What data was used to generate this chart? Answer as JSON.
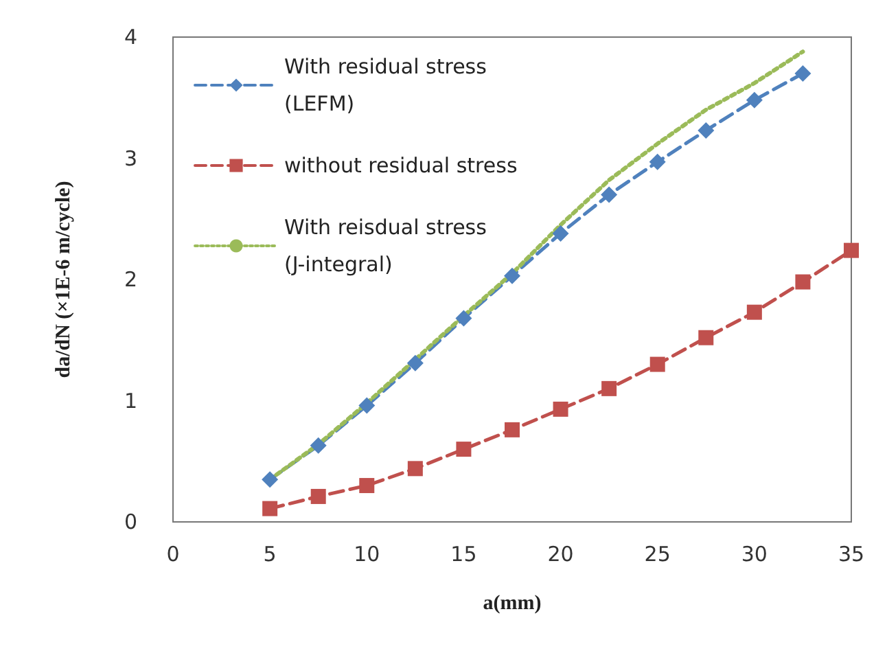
{
  "chart_data": {
    "type": "line",
    "xlabel": "a(mm)",
    "ylabel": "da/dN (×1E-6 m/cycle)",
    "xlim": [
      0,
      35
    ],
    "xticks": [
      0,
      5,
      10,
      15,
      20,
      25,
      30,
      35
    ],
    "ylim": [
      0,
      4
    ],
    "yticks": [
      0,
      1,
      2,
      3,
      4
    ],
    "grid": false,
    "legend": "top left",
    "series": [
      {
        "name": "With residual stress (LEFM)",
        "color": "#4f81bd",
        "marker": "diamond",
        "line_style": "dashed",
        "x": [
          5,
          7.5,
          10,
          12.5,
          15,
          17.5,
          20,
          22.5,
          25,
          27.5,
          30,
          32.5
        ],
        "values": [
          0.35,
          0.63,
          0.96,
          1.31,
          1.68,
          2.03,
          2.38,
          2.7,
          2.97,
          3.23,
          3.48,
          3.7
        ]
      },
      {
        "name": "without residual stress",
        "color": "#c0504d",
        "marker": "square",
        "line_style": "dashed",
        "x": [
          5,
          7.5,
          10,
          12.5,
          15,
          17.5,
          20,
          22.5,
          25,
          27.5,
          30,
          32.5,
          35
        ],
        "values": [
          0.11,
          0.21,
          0.3,
          0.44,
          0.6,
          0.76,
          0.93,
          1.1,
          1.3,
          1.52,
          1.73,
          1.98,
          2.24
        ]
      },
      {
        "name": "With reisdual stress (J-integral)",
        "color": "#9bbb59",
        "marker": "none",
        "line_style": "dotted",
        "x": [
          5,
          7.5,
          10,
          12.5,
          15,
          17.5,
          20,
          22.5,
          25,
          27.5,
          30,
          32.5
        ],
        "values": [
          0.35,
          0.64,
          0.98,
          1.34,
          1.7,
          2.05,
          2.45,
          2.82,
          3.12,
          3.4,
          3.62,
          3.88
        ]
      }
    ]
  }
}
